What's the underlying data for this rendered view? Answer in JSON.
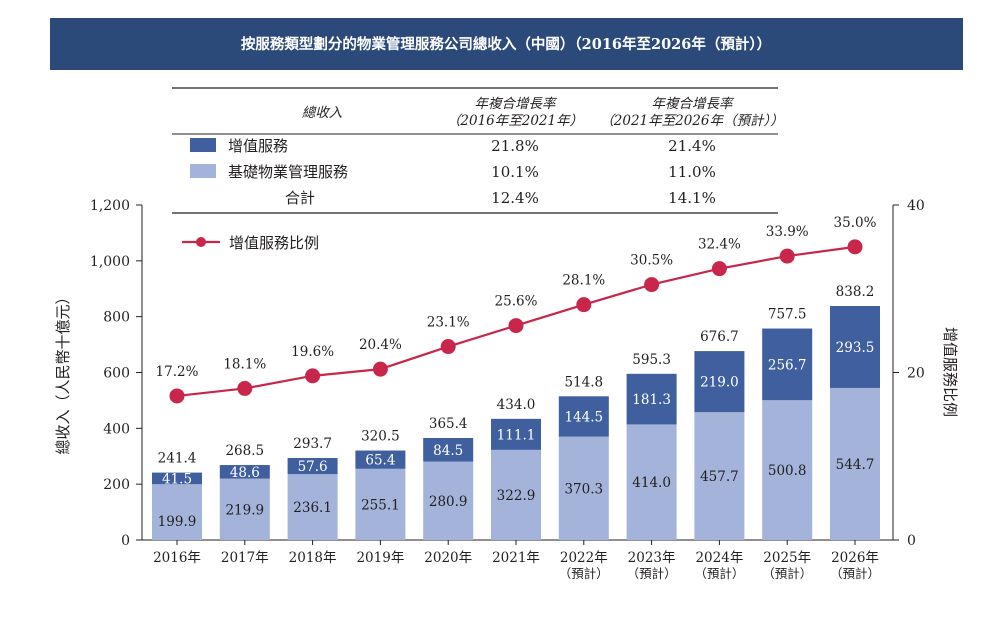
{
  "chart_data": {
    "type": "bar",
    "title": "按服務類型劃分的物業管理服務公司總收入（中國）（2016年至2026年（預計））",
    "categories": [
      [
        "2016年"
      ],
      [
        "2017年"
      ],
      [
        "2018年"
      ],
      [
        "2019年"
      ],
      [
        "2020年"
      ],
      [
        "2021年"
      ],
      [
        "2022年",
        "（預計）"
      ],
      [
        "2023年",
        "（預計）"
      ],
      [
        "2024年",
        "（預計）"
      ],
      [
        "2025年",
        "（預計）"
      ],
      [
        "2026年",
        "（預計）"
      ]
    ],
    "series": [
      {
        "name": "基礎物業管理服務",
        "type": "bar",
        "stack": "total",
        "color": "#a3b3d9",
        "values": [
          199.9,
          219.9,
          236.1,
          255.1,
          280.9,
          322.9,
          370.3,
          414.0,
          457.7,
          500.8,
          544.7
        ],
        "labels": [
          "199.9",
          "219.9",
          "236.1",
          "255.1",
          "280.9",
          "322.9",
          "370.3",
          "414.0",
          "457.7",
          "500.8",
          "544.7"
        ]
      },
      {
        "name": "增值服務",
        "type": "bar",
        "stack": "total",
        "color": "#3f5f9e",
        "values": [
          41.5,
          48.6,
          57.6,
          65.4,
          84.5,
          111.1,
          144.5,
          181.3,
          219.0,
          256.7,
          293.5
        ],
        "labels": [
          "41.5",
          "48.6",
          "57.6",
          "65.4",
          "84.5",
          "111.1",
          "144.5",
          "181.3",
          "219.0",
          "256.7",
          "293.5"
        ]
      },
      {
        "name": "增值服務比例",
        "type": "line",
        "axis": "right",
        "color": "#c8264b",
        "values": [
          17.2,
          18.1,
          19.6,
          20.4,
          23.1,
          25.6,
          28.1,
          30.5,
          32.4,
          33.9,
          35.0
        ],
        "labels": [
          "17.2%",
          "18.1%",
          "19.6%",
          "20.4%",
          "23.1%",
          "25.6%",
          "28.1%",
          "30.5%",
          "32.4%",
          "33.9%",
          "35.0%"
        ]
      }
    ],
    "totals": [
      241.4,
      268.5,
      293.7,
      320.5,
      365.4,
      434.0,
      514.8,
      595.3,
      676.7,
      757.5,
      838.2
    ],
    "total_labels": [
      "241.4",
      "268.5",
      "293.7",
      "320.5",
      "365.4",
      "434.0",
      "514.8",
      "595.3",
      "676.7",
      "757.5",
      "838.2"
    ],
    "ylabel": "總收入（人民幣十億元）",
    "y2label": "增值服務比例",
    "ylim": [
      0,
      1200
    ],
    "y_ticks": [
      0,
      200,
      400,
      600,
      800,
      1000,
      1200
    ],
    "y_tick_labels": [
      "0",
      "200",
      "400",
      "600",
      "800",
      "1,000",
      "1,200"
    ],
    "y2lim": [
      0,
      40
    ],
    "y2_ticks": [
      0,
      20,
      40
    ],
    "y2_tick_labels": [
      "0",
      "20",
      "40"
    ],
    "grid": false,
    "line_legend": "增值服務比例",
    "cagr_table": {
      "headers": [
        [
          "總收入"
        ],
        [
          "年複合增長率",
          "（2016年至2021年）"
        ],
        [
          "年複合增長率",
          "（2021年至2026年（預計））"
        ]
      ],
      "rows": [
        {
          "label": "增值服務",
          "swatch": "#3f5f9e",
          "values": [
            "21.8%",
            "21.4%"
          ]
        },
        {
          "label": "基礎物業管理服務",
          "swatch": "#a3b3d9",
          "values": [
            "10.1%",
            "11.0%"
          ]
        },
        {
          "label": "合計",
          "swatch": null,
          "values": [
            "12.4%",
            "14.1%"
          ]
        }
      ]
    }
  },
  "colors": {
    "title_bar": "#2b4a7a",
    "title_text": "#ffffff",
    "vas": "#3f5f9e",
    "basic": "#a3b3d9",
    "line": "#c8264b",
    "text": "#231f20"
  }
}
